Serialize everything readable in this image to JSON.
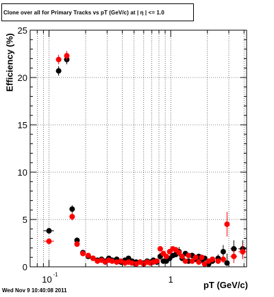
{
  "title": "Clone  over all for Primary Tracks vs pT (GeV/c) at |  η | <= 1.0",
  "timestamp": "Wed Nov  9 10:40:08 2011",
  "colors": {
    "series_black": "#000000",
    "series_red": "#ff0000",
    "frame": "#000000",
    "grid": "#000000"
  },
  "chart_data": {
    "type": "scatter",
    "title": "Clone  over all for Primary Tracks vs pT (GeV/c) at |  η | <= 1.0",
    "xlabel": "pT (GeV/c)",
    "ylabel": "Efficiency (%)",
    "xscale": "log",
    "xlim": [
      0.07,
      4.2
    ],
    "ylim": [
      0,
      25
    ],
    "grid": true,
    "legend": "none",
    "y_ticks": [
      0,
      5,
      10,
      15,
      20,
      25
    ],
    "y_tick_labels": [
      "0",
      "5",
      "10",
      "15",
      "20",
      "25"
    ],
    "x_tick_labels": [
      {
        "value": 0.1,
        "base": "10",
        "exp": "-1"
      },
      {
        "value": 1,
        "base": "1",
        "exp": ""
      }
    ],
    "series": [
      {
        "color": "#000000",
        "points": [
          {
            "x": 0.1,
            "y": 3.8,
            "ylo": 3.5,
            "yhi": 4.1,
            "xlo": 0.09,
            "xhi": 0.11
          },
          {
            "x": 0.12,
            "y": 20.7,
            "ylo": 20.2,
            "yhi": 21.2
          },
          {
            "x": 0.14,
            "y": 21.9,
            "ylo": 21.4,
            "yhi": 22.4
          },
          {
            "x": 0.155,
            "y": 6.1,
            "ylo": 5.7,
            "yhi": 6.5
          },
          {
            "x": 0.17,
            "y": 2.8,
            "ylo": 2.5,
            "yhi": 3.1
          },
          {
            "x": 0.19,
            "y": 1.5,
            "ylo": 1.3,
            "yhi": 1.7
          },
          {
            "x": 0.21,
            "y": 1.1
          },
          {
            "x": 0.23,
            "y": 0.9
          },
          {
            "x": 0.25,
            "y": 0.7
          },
          {
            "x": 0.27,
            "y": 0.8
          },
          {
            "x": 0.29,
            "y": 0.6
          },
          {
            "x": 0.31,
            "y": 0.9
          },
          {
            "x": 0.33,
            "y": 0.7
          },
          {
            "x": 0.36,
            "y": 0.8
          },
          {
            "x": 0.39,
            "y": 0.5
          },
          {
            "x": 0.42,
            "y": 0.7
          },
          {
            "x": 0.45,
            "y": 0.9
          },
          {
            "x": 0.48,
            "y": 0.6
          },
          {
            "x": 0.52,
            "y": 0.5
          },
          {
            "x": 0.56,
            "y": 0.5
          },
          {
            "x": 0.6,
            "y": 0.4
          },
          {
            "x": 0.64,
            "y": 0.6
          },
          {
            "x": 0.68,
            "y": 0.5
          },
          {
            "x": 0.72,
            "y": 0.7
          },
          {
            "x": 0.77,
            "y": 0.5
          },
          {
            "x": 0.82,
            "y": 1.1,
            "ylo": 0.7,
            "yhi": 1.5
          },
          {
            "x": 0.87,
            "y": 0.6
          },
          {
            "x": 0.92,
            "y": 0.6
          },
          {
            "x": 0.98,
            "y": 0.9
          },
          {
            "x": 1.04,
            "y": 1.2
          },
          {
            "x": 1.1,
            "y": 1.3
          },
          {
            "x": 1.17,
            "y": 1.6,
            "ylo": 1.1,
            "yhi": 2.1
          },
          {
            "x": 1.24,
            "y": 0.9
          },
          {
            "x": 1.32,
            "y": 1.4
          },
          {
            "x": 1.4,
            "y": 0.6
          },
          {
            "x": 1.5,
            "y": 1.2
          },
          {
            "x": 1.6,
            "y": 0.8
          },
          {
            "x": 1.7,
            "y": 1.1
          },
          {
            "x": 1.8,
            "y": 0.7
          },
          {
            "x": 1.9,
            "y": 0.9
          },
          {
            "x": 2.05,
            "y": 0.3
          },
          {
            "x": 2.2,
            "y": 0.6
          },
          {
            "x": 2.45,
            "y": 0.9,
            "ylo": 0.5,
            "yhi": 1.3
          },
          {
            "x": 2.7,
            "y": 1.6,
            "ylo": 0.9,
            "yhi": 2.3
          },
          {
            "x": 2.9,
            "y": 0.4,
            "ylo": 0.1,
            "yhi": 1.4
          },
          {
            "x": 3.3,
            "y": 1.9,
            "ylo": 1.0,
            "yhi": 2.8,
            "xlo": 3.1,
            "xhi": 3.5
          },
          {
            "x": 3.9,
            "y": 1.9,
            "ylo": 1.0,
            "yhi": 2.8,
            "xlo": 3.6,
            "xhi": 4.2
          }
        ]
      },
      {
        "color": "#ff0000",
        "points": [
          {
            "x": 0.1,
            "y": 2.7,
            "ylo": 2.4,
            "yhi": 3.0,
            "xlo": 0.09,
            "xhi": 0.11
          },
          {
            "x": 0.12,
            "y": 21.9,
            "ylo": 21.4,
            "yhi": 22.4
          },
          {
            "x": 0.14,
            "y": 22.3,
            "ylo": 21.8,
            "yhi": 22.8
          },
          {
            "x": 0.155,
            "y": 5.3,
            "ylo": 4.9,
            "yhi": 5.7
          },
          {
            "x": 0.17,
            "y": 2.4,
            "ylo": 2.1,
            "yhi": 2.7
          },
          {
            "x": 0.19,
            "y": 1.4
          },
          {
            "x": 0.21,
            "y": 1.2
          },
          {
            "x": 0.23,
            "y": 0.9
          },
          {
            "x": 0.25,
            "y": 0.6
          },
          {
            "x": 0.27,
            "y": 0.7
          },
          {
            "x": 0.29,
            "y": 0.5
          },
          {
            "x": 0.31,
            "y": 0.7
          },
          {
            "x": 0.33,
            "y": 0.6
          },
          {
            "x": 0.36,
            "y": 0.5
          },
          {
            "x": 0.39,
            "y": 0.6
          },
          {
            "x": 0.42,
            "y": 0.4
          },
          {
            "x": 0.45,
            "y": 0.5
          },
          {
            "x": 0.48,
            "y": 0.4
          },
          {
            "x": 0.52,
            "y": 0.3
          },
          {
            "x": 0.56,
            "y": 0.5
          },
          {
            "x": 0.6,
            "y": 0.3
          },
          {
            "x": 0.64,
            "y": 0.5
          },
          {
            "x": 0.68,
            "y": 0.4
          },
          {
            "x": 0.72,
            "y": 0.5
          },
          {
            "x": 0.77,
            "y": 0.6
          },
          {
            "x": 0.82,
            "y": 1.9
          },
          {
            "x": 0.87,
            "y": 1.4
          },
          {
            "x": 0.92,
            "y": 1.1
          },
          {
            "x": 0.98,
            "y": 1.6
          },
          {
            "x": 1.04,
            "y": 1.9
          },
          {
            "x": 1.1,
            "y": 1.8
          },
          {
            "x": 1.17,
            "y": 1.5
          },
          {
            "x": 1.24,
            "y": 1.1
          },
          {
            "x": 1.32,
            "y": 0.6
          },
          {
            "x": 1.4,
            "y": 1.2
          },
          {
            "x": 1.5,
            "y": 0.6
          },
          {
            "x": 1.6,
            "y": 1.0
          },
          {
            "x": 1.7,
            "y": 0.5
          },
          {
            "x": 1.8,
            "y": 1.0
          },
          {
            "x": 1.9,
            "y": 0.3
          },
          {
            "x": 2.05,
            "y": 0.6
          },
          {
            "x": 2.2,
            "y": 0.8
          },
          {
            "x": 2.45,
            "y": 0.6,
            "ylo": 0.3,
            "yhi": 0.9
          },
          {
            "x": 2.7,
            "y": 0.8,
            "ylo": 0.4,
            "yhi": 1.2
          },
          {
            "x": 2.9,
            "y": 4.5,
            "ylo": 3.2,
            "yhi": 5.8
          },
          {
            "x": 3.3,
            "y": 1.1,
            "ylo": 0.4,
            "yhi": 1.8,
            "xlo": 3.1,
            "xhi": 3.5
          },
          {
            "x": 3.9,
            "y": 1.6,
            "ylo": 0.8,
            "yhi": 2.4,
            "xlo": 3.6,
            "xhi": 4.2
          }
        ]
      }
    ]
  }
}
